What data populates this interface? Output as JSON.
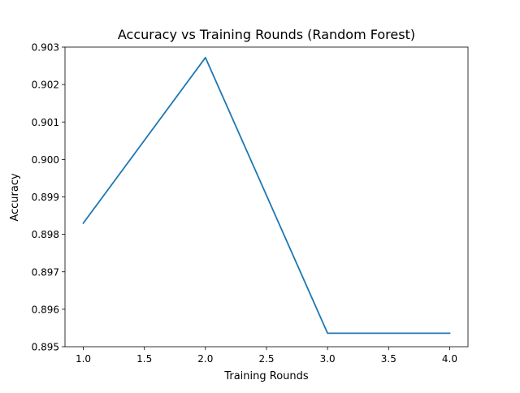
{
  "chart_data": {
    "type": "line",
    "title": "Accuracy vs Training Rounds (Random Forest)",
    "xlabel": "Training Rounds",
    "ylabel": "Accuracy",
    "x": [
      1.0,
      2.0,
      3.0,
      4.0
    ],
    "series": [
      {
        "values": [
          0.8983,
          0.90272,
          0.89536,
          0.89536
        ],
        "color": "#1f77b4"
      }
    ],
    "xlim": [
      0.85,
      4.15
    ],
    "ylim": [
      0.895,
      0.903
    ],
    "x_ticks": [
      "1.0",
      "1.5",
      "2.0",
      "2.5",
      "3.0",
      "3.5",
      "4.0"
    ],
    "y_ticks": [
      "0.895",
      "0.896",
      "0.897",
      "0.898",
      "0.899",
      "0.900",
      "0.901",
      "0.902",
      "0.903"
    ],
    "grid": false,
    "legend": "none"
  }
}
